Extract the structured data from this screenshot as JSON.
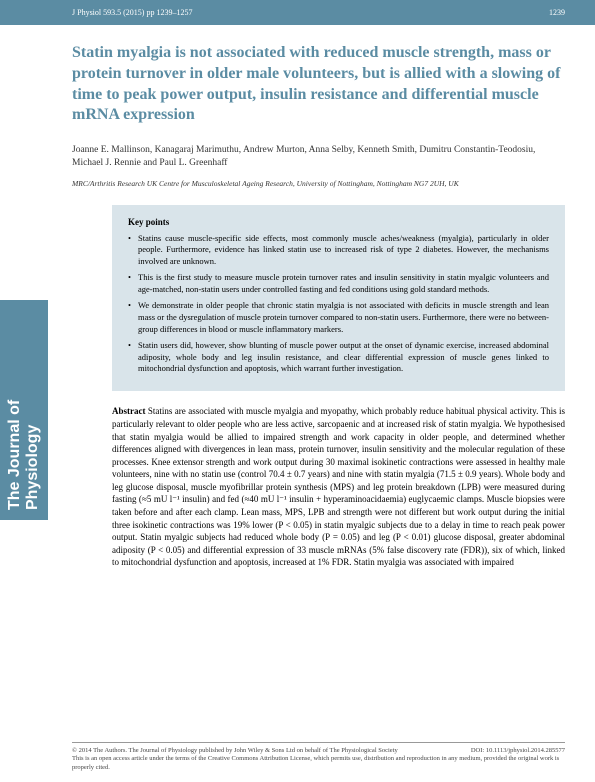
{
  "header": {
    "citation": "J Physiol 593.5 (2015) pp 1239–1257",
    "page_number": "1239"
  },
  "sidebar": {
    "journal_name": "The Journal of Physiology"
  },
  "title": "Statin myalgia is not associated with reduced muscle strength, mass or protein turnover in older male volunteers, but is allied with a slowing of time to peak power output, insulin resistance and differential muscle mRNA expression",
  "authors": "Joanne E. Mallinson, Kanagaraj Marimuthu, Andrew Murton, Anna Selby, Kenneth Smith, Dumitru Constantin-Teodosiu, Michael J. Rennie and Paul L. Greenhaff",
  "affiliation": "MRC/Arthritis Research UK Centre for Musculoskeletal Ageing Research, University of Nottingham, Nottingham NG7 2UH, UK",
  "keypoints": {
    "label": "Key points",
    "items": [
      "Statins cause muscle-specific side effects, most commonly muscle aches/weakness (myalgia), particularly in older people. Furthermore, evidence has linked statin use to increased risk of type 2 diabetes. However, the mechanisms involved are unknown.",
      "This is the first study to measure muscle protein turnover rates and insulin sensitivity in statin myalgic volunteers and age-matched, non-statin users under controlled fasting and fed conditions using gold standard methods.",
      "We demonstrate in older people that chronic statin myalgia is not associated with deficits in muscle strength and lean mass or the dysregulation of muscle protein turnover compared to non-statin users. Furthermore, there were no between-group differences in blood or muscle inflammatory markers.",
      "Statin users did, however, show blunting of muscle power output at the onset of dynamic exercise, increased abdominal adiposity, whole body and leg insulin resistance, and clear differential expression of muscle genes linked to mitochondrial dysfunction and apoptosis, which warrant further investigation."
    ]
  },
  "abstract": {
    "label": "Abstract",
    "text": "Statins are associated with muscle myalgia and myopathy, which probably reduce habitual physical activity. This is particularly relevant to older people who are less active, sarcopaenic and at increased risk of statin myalgia. We hypothesised that statin myalgia would be allied to impaired strength and work capacity in older people, and determined whether differences aligned with divergences in lean mass, protein turnover, insulin sensitivity and the molecular regulation of these processes. Knee extensor strength and work output during 30 maximal isokinetic contractions were assessed in healthy male volunteers, nine with no statin use (control 70.4 ± 0.7 years) and nine with statin myalgia (71.5 ± 0.9 years). Whole body and leg glucose disposal, muscle myofibrillar protein synthesis (MPS) and leg protein breakdown (LPB) were measured during fasting (≈5 mU l⁻¹ insulin) and fed (≈40 mU l⁻¹ insulin + hyperaminoacidaemia) euglycaemic clamps. Muscle biopsies were taken before and after each clamp. Lean mass, MPS, LPB and strength were not different but work output during the initial three isokinetic contractions was 19% lower (P < 0.05) in statin myalgic subjects due to a delay in time to reach peak power output. Statin myalgic subjects had reduced whole body (P = 0.05) and leg (P < 0.01) glucose disposal, greater abdominal adiposity (P < 0.05) and differential expression of 33 muscle mRNAs (5% false discovery rate (FDR)), six of which, linked to mitochondrial dysfunction and apoptosis, increased at 1% FDR. Statin myalgia was associated with impaired"
  },
  "footer": {
    "copyright": "© 2014 The Authors. The Journal of Physiology published by John Wiley & Sons Ltd on behalf of The Physiological Society",
    "doi": "DOI: 10.1113/jphysiol.2014.285577",
    "license": "This is an open access article under the terms of the Creative Commons Attribution License, which permits use, distribution and reproduction in any medium, provided the original work is properly cited."
  },
  "colors": {
    "accent": "#5b8ca3",
    "keypoints_bg": "#d9e4ea",
    "text": "#333333",
    "page_bg": "#ffffff"
  }
}
